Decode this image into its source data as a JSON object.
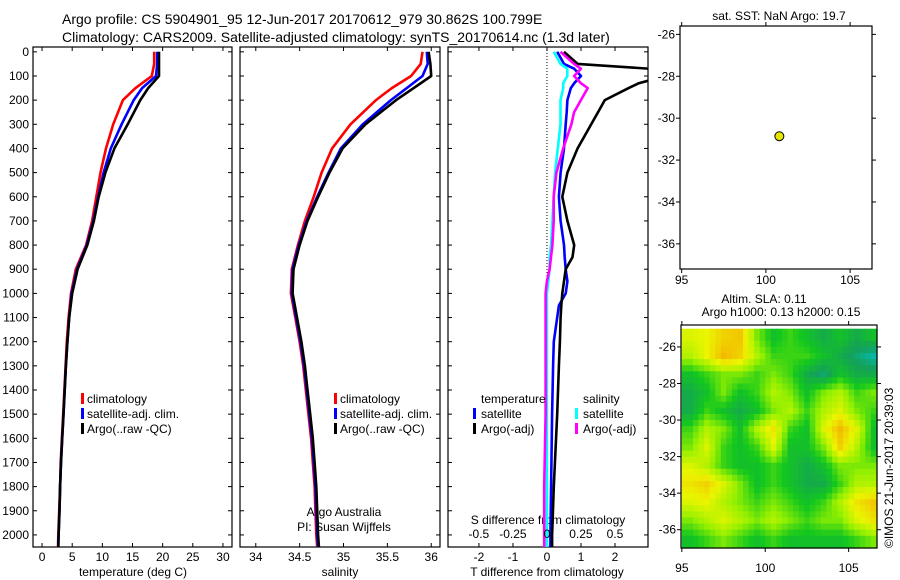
{
  "header": {
    "line1": "Argo profile: CS 5904901_95 12-Jun-2017 20170612_979 30.862S 100.799E",
    "line2": "Climatology: CARS2009. Satellite-adjusted climatology: synTS_20170614.nc (1.3d later)"
  },
  "credit": "©IMOS 21-Jun-2017 20:39:03",
  "colors": {
    "climatology": "#ff0000",
    "satellite": "#0000ff",
    "argo": "#000000",
    "sal_satellite": "#00ffff",
    "sal_argo": "#ff00ff",
    "float_dot": "#e6e600"
  },
  "chart_data": [
    {
      "type": "line",
      "id": "temperature",
      "xlabel": "temperature (deg C)",
      "ylabel": "",
      "xlim": [
        -1.5,
        31.5
      ],
      "ylim": [
        2050,
        -20
      ],
      "xticks": [
        0,
        5,
        10,
        15,
        20,
        25,
        30
      ],
      "yticks": [
        0,
        100,
        200,
        300,
        400,
        500,
        600,
        700,
        800,
        900,
        1000,
        1100,
        1200,
        1300,
        1400,
        1500,
        1600,
        1700,
        1800,
        1900,
        2000
      ],
      "depth": [
        0,
        50,
        100,
        150,
        200,
        300,
        400,
        500,
        600,
        700,
        800,
        900,
        1000,
        1100,
        1200,
        1300,
        1400,
        1500,
        1600,
        1700,
        1800,
        1900,
        2000,
        2050
      ],
      "series": [
        {
          "name": "climatology",
          "color": "#ff0000",
          "values": [
            18.6,
            18.6,
            18.2,
            15.5,
            13.4,
            11.8,
            10.6,
            9.7,
            9.0,
            8.3,
            7.3,
            5.6,
            4.8,
            4.4,
            4.1,
            3.9,
            3.7,
            3.5,
            3.3,
            3.1,
            3.0,
            2.85,
            2.7,
            2.65
          ]
        },
        {
          "name": "satellite-adj. clim.",
          "color": "#0000ff",
          "values": [
            19.1,
            19.1,
            18.9,
            16.6,
            15.2,
            13.2,
            11.4,
            10.2,
            9.3,
            8.5,
            7.4,
            5.8,
            4.9,
            4.5,
            4.2,
            3.95,
            3.75,
            3.55,
            3.35,
            3.15,
            3.0,
            2.9,
            2.75,
            2.7
          ]
        },
        {
          "name": "Argo(..raw -QC)",
          "color": "#000000",
          "values": [
            19.4,
            19.4,
            19.4,
            17.6,
            16.3,
            14.2,
            12.0,
            10.5,
            9.4,
            8.6,
            7.5,
            5.9,
            5.0,
            4.5,
            4.2,
            3.95,
            3.75,
            3.55,
            3.35,
            3.15,
            3.0,
            2.9,
            2.75,
            2.7
          ]
        }
      ],
      "legend_placement": "lower-center"
    },
    {
      "type": "line",
      "id": "salinity",
      "xlabel": "salinity",
      "xlim": [
        33.82,
        36.1
      ],
      "ylim": [
        2050,
        -20
      ],
      "xticks": [
        34,
        34.5,
        35,
        35.5,
        36
      ],
      "depth": [
        0,
        50,
        100,
        150,
        200,
        300,
        400,
        500,
        600,
        700,
        800,
        900,
        1000,
        1100,
        1200,
        1300,
        1400,
        1500,
        1600,
        1700,
        1800,
        1900,
        2000,
        2050
      ],
      "series": [
        {
          "name": "climatology",
          "color": "#ff0000",
          "values": [
            35.9,
            35.88,
            35.77,
            35.55,
            35.37,
            35.08,
            34.87,
            34.75,
            34.66,
            34.56,
            34.48,
            34.41,
            34.4,
            34.45,
            34.5,
            34.54,
            34.57,
            34.6,
            34.63,
            34.65,
            34.67,
            34.68,
            34.69,
            34.7
          ]
        },
        {
          "name": "satellite-adj. clim.",
          "color": "#0000ff",
          "values": [
            35.95,
            35.96,
            35.9,
            35.72,
            35.54,
            35.22,
            34.97,
            34.83,
            34.7,
            34.58,
            34.49,
            34.42,
            34.41,
            34.46,
            34.51,
            34.55,
            34.58,
            34.61,
            34.64,
            34.66,
            34.68,
            34.69,
            34.7,
            34.71
          ]
        },
        {
          "name": "Argo(..raw -QC)",
          "color": "#000000",
          "values": [
            35.97,
            35.99,
            36.0,
            35.8,
            35.6,
            35.25,
            34.99,
            34.84,
            34.71,
            34.59,
            34.5,
            34.43,
            34.42,
            34.47,
            34.52,
            34.56,
            34.59,
            34.62,
            34.65,
            34.67,
            34.69,
            34.7,
            34.71,
            34.72
          ]
        }
      ],
      "annotation": [
        "Argo Australia",
        "PI: Susan Wijffels"
      ]
    },
    {
      "type": "line",
      "id": "difference",
      "xlabel": "T difference from climatology",
      "xlabel_top": "S difference from climatology",
      "xlim": [
        -2.91,
        2.97
      ],
      "xlim_s": [
        -0.727,
        0.743
      ],
      "ylim": [
        2050,
        -20
      ],
      "xticks": [
        -2,
        -1,
        0,
        1,
        2
      ],
      "xticks_s": [
        "-0.5",
        "-0.25",
        "0",
        "0.25",
        "0.5"
      ],
      "xticks_s_values": [
        -0.5,
        -0.25,
        0,
        0.25,
        0.5
      ],
      "depth": [
        0,
        50,
        70,
        100,
        130,
        150,
        200,
        250,
        300,
        400,
        500,
        600,
        700,
        800,
        850,
        900,
        950,
        1000,
        1050,
        1100,
        1200,
        1300,
        1500,
        1800,
        2000,
        2050
      ],
      "legend_headers": [
        "temperature",
        "salinity"
      ],
      "series": [
        {
          "name": "satellite",
          "group": "temperature",
          "color": "#0000ff",
          "axis": "T",
          "values": [
            0.3,
            0.5,
            0.8,
            1.0,
            0.8,
            0.7,
            0.6,
            0.58,
            0.55,
            0.5,
            0.4,
            0.35,
            0.4,
            0.5,
            0.52,
            0.55,
            0.6,
            0.55,
            0.35,
            0.3,
            0.2,
            0.18,
            0.15,
            0.12,
            0.1,
            0.1
          ]
        },
        {
          "name": "Argo(-adj)",
          "group": "temperature",
          "color": "#000000",
          "axis": "T",
          "values": [
            0.5,
            0.9,
            3.0,
            3.5,
            2.7,
            2.4,
            1.7,
            1.5,
            1.3,
            0.9,
            0.6,
            0.45,
            0.6,
            0.8,
            0.75,
            0.55,
            0.5,
            0.45,
            0.42,
            0.4,
            0.38,
            0.35,
            0.3,
            0.2,
            0.15,
            0.15
          ]
        },
        {
          "name": "satellite",
          "group": "salinity",
          "color": "#00ffff",
          "axis": "S",
          "values": [
            0.05,
            0.1,
            0.15,
            0.15,
            0.12,
            0.12,
            0.1,
            0.1,
            0.1,
            0.08,
            0.06,
            0.05,
            0.04,
            0.03,
            0.02,
            0.02,
            0.01,
            0.0,
            0.0,
            0.0,
            0.0,
            0.0,
            0.0,
            0.0,
            0.0,
            0.0
          ]
        },
        {
          "name": "Argo(-adj)",
          "group": "salinity",
          "color": "#ff00ff",
          "axis": "S",
          "values": [
            0.1,
            0.2,
            0.25,
            0.2,
            0.25,
            0.3,
            0.25,
            0.2,
            0.18,
            0.12,
            0.07,
            0.05,
            0.05,
            0.04,
            0.03,
            0.02,
            0.0,
            -0.01,
            -0.01,
            -0.01,
            -0.01,
            -0.01,
            -0.01,
            -0.02,
            -0.02,
            -0.02
          ]
        }
      ]
    },
    {
      "type": "scatter",
      "id": "sst-map",
      "title": "sat. SST: NaN Argo: 19.7",
      "xlim": [
        94.9,
        106.3
      ],
      "ylim": [
        -37.2,
        -25.6
      ],
      "xticks": [
        95,
        100,
        105
      ],
      "yticks": [
        -26,
        -28,
        -30,
        -32,
        -34,
        -36
      ],
      "points": [
        {
          "lon": 100.799,
          "lat": -30.862
        }
      ]
    },
    {
      "type": "heatmap",
      "id": "sla-map",
      "title": [
        "Altim. SLA: 0.11",
        "Argo h1000: 0.13 h2000: 0.15"
      ],
      "xlim": [
        94.95,
        106.7
      ],
      "ylim": [
        -37.0,
        -24.8
      ],
      "xticks": [
        95,
        100,
        105
      ],
      "yticks": [
        -26,
        -28,
        -30,
        -32,
        -34,
        -36
      ],
      "lon": [
        95.5,
        96.5,
        97.5,
        98.5,
        99.5,
        100.5,
        101.5,
        102.5,
        103.5,
        104.5,
        105.5,
        106.5
      ],
      "lat": [
        -25.5,
        -26.5,
        -27.5,
        -28.5,
        -29.5,
        -30.5,
        -31.5,
        -32.5,
        -33.5,
        -34.5,
        -35.5,
        -36.5
      ],
      "values": [
        [
          0.7,
          0.72,
          0.78,
          0.8,
          0.6,
          0.5,
          0.55,
          0.5,
          0.45,
          0.5,
          0.45,
          0.5
        ],
        [
          0.65,
          0.72,
          0.82,
          0.78,
          0.65,
          0.55,
          0.55,
          0.55,
          0.5,
          0.45,
          0.4,
          0.35
        ],
        [
          0.5,
          0.55,
          0.6,
          0.6,
          0.55,
          0.6,
          0.55,
          0.45,
          0.4,
          0.5,
          0.45,
          0.45
        ],
        [
          0.45,
          0.5,
          0.6,
          0.5,
          0.55,
          0.65,
          0.6,
          0.5,
          0.6,
          0.65,
          0.55,
          0.6
        ],
        [
          0.45,
          0.55,
          0.5,
          0.45,
          0.5,
          0.6,
          0.65,
          0.55,
          0.65,
          0.7,
          0.6,
          0.55
        ],
        [
          0.55,
          0.65,
          0.6,
          0.5,
          0.65,
          0.75,
          0.55,
          0.5,
          0.7,
          0.82,
          0.7,
          0.5
        ],
        [
          0.6,
          0.7,
          0.55,
          0.5,
          0.55,
          0.7,
          0.5,
          0.5,
          0.6,
          0.78,
          0.65,
          0.5
        ],
        [
          0.7,
          0.65,
          0.55,
          0.5,
          0.5,
          0.55,
          0.5,
          0.45,
          0.5,
          0.6,
          0.6,
          0.6
        ],
        [
          0.75,
          0.78,
          0.7,
          0.6,
          0.5,
          0.55,
          0.5,
          0.45,
          0.45,
          0.55,
          0.65,
          0.65
        ],
        [
          0.7,
          0.72,
          0.65,
          0.6,
          0.55,
          0.6,
          0.55,
          0.5,
          0.55,
          0.65,
          0.75,
          0.8
        ],
        [
          0.6,
          0.65,
          0.7,
          0.65,
          0.6,
          0.65,
          0.6,
          0.55,
          0.6,
          0.6,
          0.7,
          0.75
        ],
        [
          0.5,
          0.55,
          0.6,
          0.55,
          0.5,
          0.55,
          0.5,
          0.5,
          0.5,
          0.5,
          0.55,
          0.6
        ]
      ]
    }
  ]
}
